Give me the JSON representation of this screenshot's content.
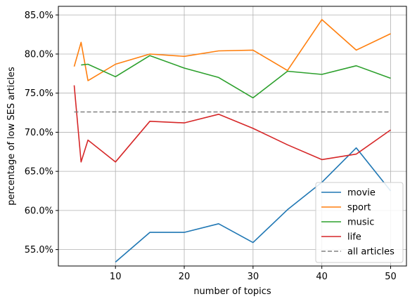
{
  "chart_data": {
    "type": "line",
    "xlabel": "number of topics",
    "ylabel": "percentage of low SES articles",
    "xlim": [
      1.7,
      52.3
    ],
    "ylim": [
      52.9,
      86.1
    ],
    "xticks": [
      10,
      20,
      30,
      40,
      50
    ],
    "yticks": [
      55,
      60,
      65,
      70,
      75,
      80,
      85
    ],
    "ytick_suffix": "%",
    "grid": true,
    "legend_position": "lower-right",
    "series": [
      {
        "name": "movie",
        "color": "#1f77b4",
        "dashed": false,
        "x": [
          10,
          15,
          20,
          25,
          30,
          35,
          40,
          45,
          50
        ],
        "y": [
          53.4,
          57.2,
          57.2,
          58.3,
          55.9,
          60.1,
          63.6,
          68.0,
          62.5
        ]
      },
      {
        "name": "sport",
        "color": "#ff7f0e",
        "dashed": false,
        "x": [
          4,
          5,
          6,
          10,
          15,
          20,
          25,
          30,
          35,
          40,
          45,
          50
        ],
        "y": [
          78.4,
          81.5,
          76.6,
          78.7,
          80.0,
          79.7,
          80.4,
          80.5,
          77.9,
          84.4,
          80.5,
          82.6
        ]
      },
      {
        "name": "music",
        "color": "#2ca02c",
        "dashed": false,
        "x": [
          5,
          6,
          10,
          15,
          20,
          25,
          30,
          35,
          40,
          45,
          50
        ],
        "y": [
          78.6,
          78.7,
          77.1,
          79.8,
          78.2,
          77.0,
          74.4,
          77.8,
          77.4,
          78.5,
          76.9
        ]
      },
      {
        "name": "life",
        "color": "#d62728",
        "dashed": false,
        "x": [
          4,
          5,
          6,
          10,
          15,
          20,
          25,
          30,
          35,
          40,
          45,
          50
        ],
        "y": [
          76.0,
          66.2,
          69.0,
          66.2,
          71.4,
          71.2,
          72.3,
          70.5,
          68.4,
          66.5,
          67.2,
          70.3
        ]
      },
      {
        "name": "all articles",
        "color": "#808080",
        "dashed": true,
        "x": [
          4,
          50
        ],
        "y": [
          72.6,
          72.6
        ]
      }
    ]
  }
}
